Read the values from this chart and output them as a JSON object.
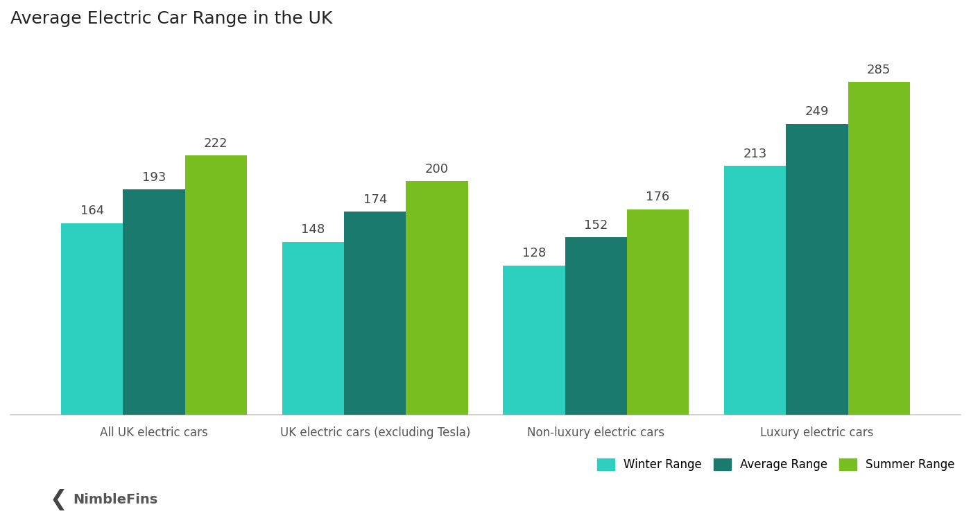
{
  "title": "Average Electric Car Range in the UK",
  "categories": [
    "All UK electric cars",
    "UK electric cars (excluding Tesla)",
    "Non-luxury electric cars",
    "Luxury electric cars"
  ],
  "series": {
    "Winter Range": [
      164,
      148,
      128,
      213
    ],
    "Average Range": [
      193,
      174,
      152,
      249
    ],
    "Summer Range": [
      222,
      200,
      176,
      285
    ]
  },
  "colors": {
    "Winter Range": "#2DCFBF",
    "Average Range": "#1A7A6E",
    "Summer Range": "#78BE20"
  },
  "legend_labels": [
    "Winter Range",
    "Average Range",
    "Summer Range"
  ],
  "bar_width": 0.28,
  "ylim": [
    0,
    320
  ],
  "title_fontsize": 18,
  "label_fontsize": 13,
  "tick_fontsize": 12,
  "value_fontsize": 13,
  "legend_fontsize": 12,
  "background_color": "#ffffff",
  "nimblefins_text": "NimbleFins",
  "nimblefins_color": "#555555"
}
